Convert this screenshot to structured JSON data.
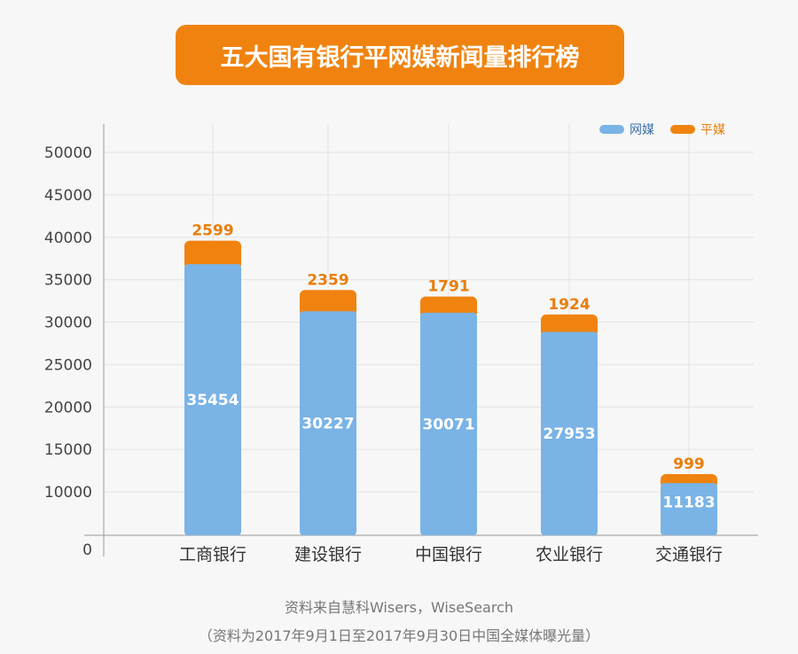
{
  "chart_data": {
    "type": "bar",
    "title": "五大国有银行平网媒新闻量排行榜",
    "categories": [
      "工商银行",
      "建设银行",
      "中国银行",
      "农业银行",
      "交通银行"
    ],
    "series": [
      {
        "name": "网媒",
        "color": "#7ab3e6",
        "values": [
          35454,
          30227,
          30071,
          27953,
          11183
        ]
      },
      {
        "name": "平媒",
        "color": "#f0830f",
        "values": [
          2599,
          2359,
          1791,
          1924,
          999
        ]
      }
    ],
    "yticks": [
      0,
      10000,
      15000,
      20000,
      25000,
      30000,
      35000,
      40000,
      45000,
      50000
    ],
    "stacked": true,
    "legend": "top-right",
    "grid": true
  },
  "footer": {
    "source": "资料来自慧科Wisers，WiseSearch",
    "note": "（资料为2017年9月1日至2017年9月30日中国全媒体曝光量）"
  }
}
